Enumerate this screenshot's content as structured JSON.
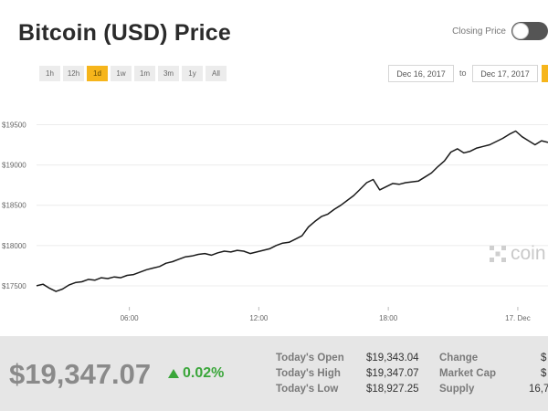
{
  "header": {
    "title": "Bitcoin (USD) Price",
    "closing_price_label": "Closing Price"
  },
  "ranges": [
    "1h",
    "12h",
    "1d",
    "1w",
    "1m",
    "3m",
    "1y",
    "All"
  ],
  "active_range": "1d",
  "date_range": {
    "from": "Dec 16, 2017",
    "separator": "to",
    "to": "Dec 17, 2017"
  },
  "watermark": {
    "text": "coin"
  },
  "colors": {
    "accent": "#f6b51b",
    "line": "#1a1a1a",
    "up": "#3aa63a"
  },
  "chart_data": {
    "type": "line",
    "y_ticks": [
      "$17500",
      "$18000",
      "$18500",
      "$19000",
      "$19500"
    ],
    "y_tick_values": [
      17500,
      18000,
      18500,
      19000,
      19500
    ],
    "x_ticks": [
      "06:00",
      "12:00",
      "18:00",
      "17. Dec"
    ],
    "x_tick_hours": [
      6,
      12,
      18,
      24
    ],
    "ylim": [
      17250,
      19800
    ],
    "xlim_hours": [
      1.7,
      25.4
    ],
    "grid": true,
    "series": [
      {
        "values": [
          [
            1.7,
            17500
          ],
          [
            2.0,
            17520
          ],
          [
            2.3,
            17470
          ],
          [
            2.6,
            17430
          ],
          [
            2.9,
            17460
          ],
          [
            3.2,
            17510
          ],
          [
            3.5,
            17540
          ],
          [
            3.8,
            17550
          ],
          [
            4.1,
            17580
          ],
          [
            4.4,
            17570
          ],
          [
            4.7,
            17600
          ],
          [
            5.0,
            17590
          ],
          [
            5.3,
            17610
          ],
          [
            5.6,
            17600
          ],
          [
            5.9,
            17630
          ],
          [
            6.2,
            17640
          ],
          [
            6.5,
            17670
          ],
          [
            6.8,
            17700
          ],
          [
            7.1,
            17720
          ],
          [
            7.4,
            17740
          ],
          [
            7.7,
            17780
          ],
          [
            8.0,
            17800
          ],
          [
            8.3,
            17830
          ],
          [
            8.6,
            17860
          ],
          [
            8.9,
            17870
          ],
          [
            9.2,
            17890
          ],
          [
            9.5,
            17900
          ],
          [
            9.8,
            17880
          ],
          [
            10.1,
            17910
          ],
          [
            10.4,
            17930
          ],
          [
            10.7,
            17920
          ],
          [
            11.0,
            17940
          ],
          [
            11.3,
            17930
          ],
          [
            11.6,
            17900
          ],
          [
            11.9,
            17920
          ],
          [
            12.2,
            17940
          ],
          [
            12.5,
            17960
          ],
          [
            12.8,
            18000
          ],
          [
            13.1,
            18030
          ],
          [
            13.4,
            18040
          ],
          [
            13.7,
            18080
          ],
          [
            14.0,
            18120
          ],
          [
            14.3,
            18230
          ],
          [
            14.6,
            18300
          ],
          [
            14.9,
            18360
          ],
          [
            15.2,
            18390
          ],
          [
            15.5,
            18450
          ],
          [
            15.8,
            18500
          ],
          [
            16.1,
            18560
          ],
          [
            16.4,
            18620
          ],
          [
            16.7,
            18700
          ],
          [
            17.0,
            18780
          ],
          [
            17.3,
            18820
          ],
          [
            17.6,
            18690
          ],
          [
            17.9,
            18730
          ],
          [
            18.2,
            18770
          ],
          [
            18.5,
            18760
          ],
          [
            18.8,
            18780
          ],
          [
            19.1,
            18790
          ],
          [
            19.4,
            18800
          ],
          [
            19.7,
            18850
          ],
          [
            20.0,
            18900
          ],
          [
            20.3,
            18980
          ],
          [
            20.6,
            19050
          ],
          [
            20.9,
            19160
          ],
          [
            21.2,
            19200
          ],
          [
            21.5,
            19150
          ],
          [
            21.8,
            19170
          ],
          [
            22.1,
            19210
          ],
          [
            22.4,
            19230
          ],
          [
            22.7,
            19250
          ],
          [
            23.0,
            19290
          ],
          [
            23.3,
            19330
          ],
          [
            23.6,
            19380
          ],
          [
            23.9,
            19420
          ],
          [
            24.2,
            19350
          ],
          [
            24.5,
            19300
          ],
          [
            24.8,
            19250
          ],
          [
            25.1,
            19300
          ],
          [
            25.4,
            19280
          ]
        ]
      }
    ]
  },
  "summary": {
    "price": "$19,347.07",
    "change_pct": "0.02%",
    "open_label": "Today's Open",
    "open_value": "$19,343.04",
    "high_label": "Today's High",
    "high_value": "$19,347.07",
    "low_label": "Today's Low",
    "low_value": "$18,927.25",
    "change_label": "Change",
    "change_value": "$",
    "market_cap_label": "Market Cap",
    "market_cap_value": "$",
    "supply_label": "Supply",
    "supply_value": "16,7"
  }
}
